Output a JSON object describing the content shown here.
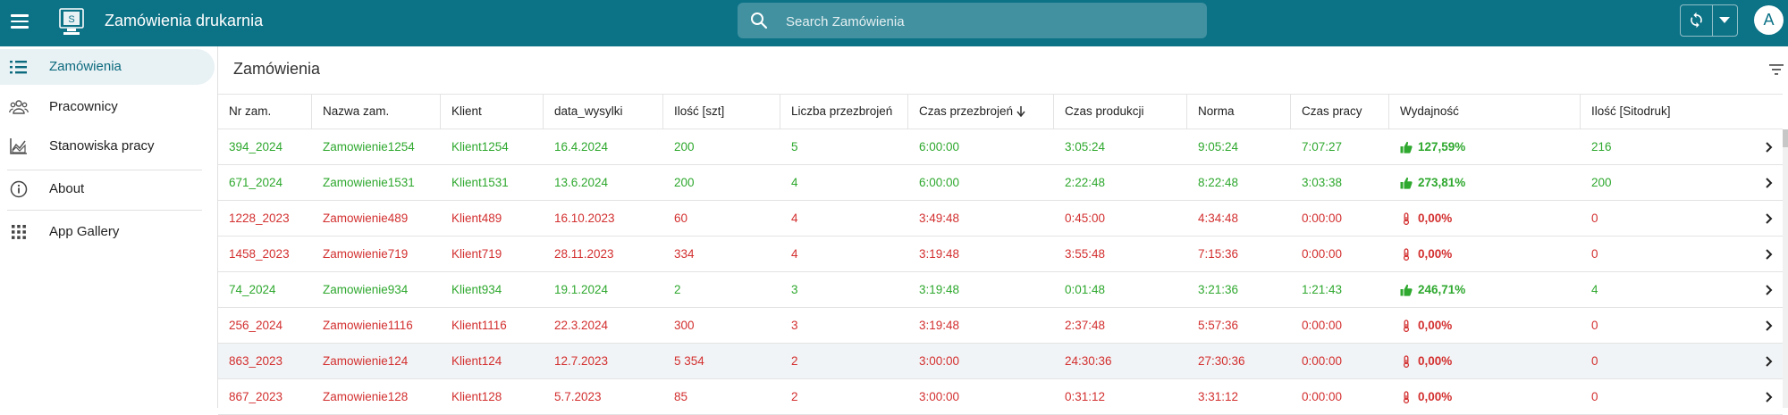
{
  "header": {
    "app_title": "Zamówienia drukarnia",
    "search_placeholder": "Search Zamówienia",
    "avatar_initial": "A",
    "brand_color": "#0c7286"
  },
  "sidebar": {
    "items": [
      {
        "label": "Zamówienia",
        "icon": "list-icon",
        "active": true
      },
      {
        "label": "Pracownicy",
        "icon": "people-icon",
        "active": false
      },
      {
        "label": "Stanowiska pracy",
        "icon": "chart-icon",
        "active": false
      },
      {
        "label": "About",
        "icon": "info-icon",
        "active": false
      },
      {
        "label": "App Gallery",
        "icon": "grid-icon",
        "active": false
      }
    ]
  },
  "main": {
    "title": "Zamówienia",
    "columns": [
      "Nr zam.",
      "Nazwa zam.",
      "Klient",
      "data_wysylki",
      "Ilość [szt]",
      "Liczba przezbrojeń",
      "Czas przezbrojeń",
      "Czas produkcji",
      "Norma",
      "Czas pracy",
      "Wydajność",
      "Ilość [Sitodruk]"
    ],
    "sorted_column": "Czas przezbrojeń",
    "sort_direction": "descending",
    "rows": [
      {
        "status": "green",
        "cells": [
          "394_2024",
          "Zamowienie1254",
          "Klient1254",
          "16.4.2024",
          "200",
          "5",
          "6:00:00",
          "3:05:24",
          "9:05:24",
          "7:07:27",
          "127,59%",
          "216"
        ]
      },
      {
        "status": "green",
        "cells": [
          "671_2024",
          "Zamowienie1531",
          "Klient1531",
          "13.6.2024",
          "200",
          "4",
          "6:00:00",
          "2:22:48",
          "8:22:48",
          "3:03:38",
          "273,81%",
          "200"
        ]
      },
      {
        "status": "red",
        "cells": [
          "1228_2023",
          "Zamowienie489",
          "Klient489",
          "16.10.2023",
          "60",
          "4",
          "3:49:48",
          "0:45:00",
          "4:34:48",
          "0:00:00",
          "0,00%",
          "0"
        ]
      },
      {
        "status": "red",
        "cells": [
          "1458_2023",
          "Zamowienie719",
          "Klient719",
          "28.11.2023",
          "334",
          "4",
          "3:19:48",
          "3:55:48",
          "7:15:36",
          "0:00:00",
          "0,00%",
          "0"
        ]
      },
      {
        "status": "green",
        "cells": [
          "74_2024",
          "Zamowienie934",
          "Klient934",
          "19.1.2024",
          "2",
          "3",
          "3:19:48",
          "0:01:48",
          "3:21:36",
          "1:21:43",
          "246,71%",
          "4"
        ]
      },
      {
        "status": "red",
        "cells": [
          "256_2024",
          "Zamowienie1116",
          "Klient1116",
          "22.3.2024",
          "300",
          "3",
          "3:19:48",
          "2:37:48",
          "5:57:36",
          "0:00:00",
          "0,00%",
          "0"
        ]
      },
      {
        "status": "red",
        "hover": true,
        "cells": [
          "863_2023",
          "Zamowienie124",
          "Klient124",
          "12.7.2023",
          "5 354",
          "2",
          "3:00:00",
          "24:30:36",
          "27:30:36",
          "0:00:00",
          "0,00%",
          "0"
        ]
      },
      {
        "status": "red",
        "cells": [
          "867_2023",
          "Zamowienie128",
          "Klient128",
          "5.7.2023",
          "85",
          "2",
          "3:00:00",
          "0:31:12",
          "3:31:12",
          "0:00:00",
          "0,00%",
          "0"
        ]
      }
    ]
  },
  "colors": {
    "good": "#2ea82e",
    "bad": "#d32f2f",
    "active_nav_bg": "#e8f1f4"
  }
}
